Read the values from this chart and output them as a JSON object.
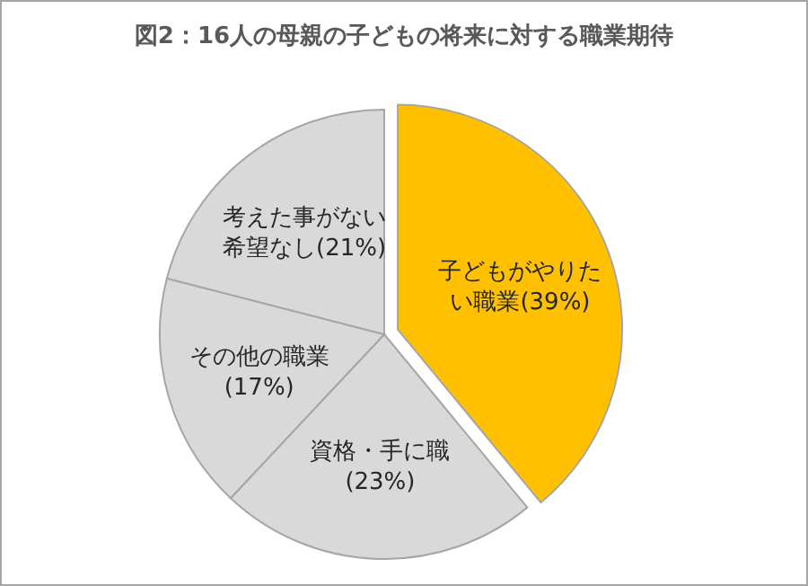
{
  "chart_data": {
    "type": "pie",
    "title": "図2：16人の母親の子どもの将来に対する職業期待",
    "categories": [
      "子どもがやりたい職業",
      "資格・手に職",
      "その他の職業",
      "考えた事がない希望なし"
    ],
    "values": [
      39,
      23,
      17,
      21
    ],
    "value_labels": [
      "(39%)",
      "(23%)",
      "(17%)",
      "(21%)"
    ],
    "colors": [
      "#ffc000",
      "#d9d9d9",
      "#d9d9d9",
      "#d9d9d9"
    ]
  }
}
